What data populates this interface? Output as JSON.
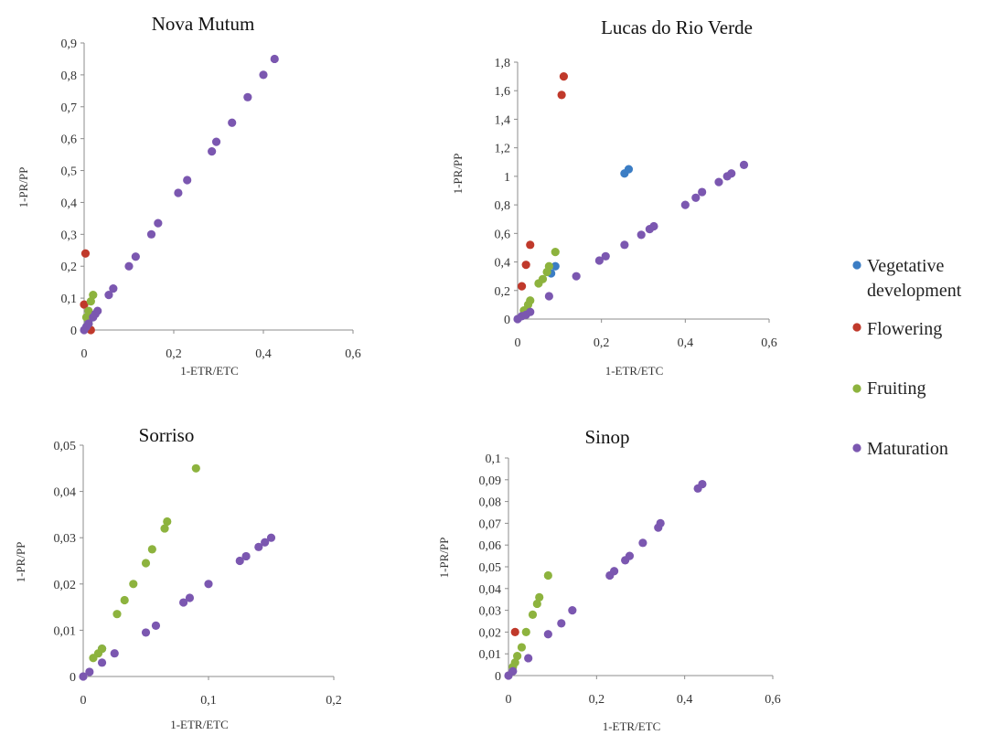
{
  "legend": [
    {
      "lines": [
        "Vegetative",
        "development"
      ],
      "color": "#3b7dc4"
    },
    {
      "lines": [
        "Flowering"
      ],
      "color": "#c0392b"
    },
    {
      "lines": [
        "Fruiting"
      ],
      "color": "#8db33e"
    },
    {
      "lines": [
        "Maturation"
      ],
      "color": "#7b57b0"
    }
  ],
  "chart_data": [
    {
      "type": "scatter",
      "title": "Nova Mutum",
      "xlabel": "1-ETR/ETC",
      "ylabel": "1-PR/PP",
      "xlim": [
        0,
        0.6
      ],
      "ylim": [
        0,
        0.9
      ],
      "xticks": [
        "0",
        "0,2",
        "0,4",
        "0,6"
      ],
      "yticks": [
        "0",
        "0,1",
        "0,2",
        "0,3",
        "0,4",
        "0,5",
        "0,6",
        "0,7",
        "0,8",
        "0,9"
      ],
      "series": [
        {
          "name": "Vegetative development",
          "color": "#3b7dc4",
          "points": [
            [
              0.005,
              0.01
            ],
            [
              0.01,
              0.03
            ]
          ]
        },
        {
          "name": "Flowering",
          "color": "#c0392b",
          "points": [
            [
              0.003,
              0.24
            ],
            [
              0.0,
              0.08
            ],
            [
              0.015,
              0.0
            ]
          ]
        },
        {
          "name": "Fruiting",
          "color": "#8db33e",
          "points": [
            [
              0.005,
              0.04
            ],
            [
              0.01,
              0.06
            ],
            [
              0.015,
              0.09
            ],
            [
              0.02,
              0.11
            ],
            [
              0.01,
              0.02
            ]
          ]
        },
        {
          "name": "Maturation",
          "color": "#7b57b0",
          "points": [
            [
              0.0,
              0.0
            ],
            [
              0.005,
              0.01
            ],
            [
              0.01,
              0.02
            ],
            [
              0.02,
              0.04
            ],
            [
              0.025,
              0.05
            ],
            [
              0.03,
              0.06
            ],
            [
              0.055,
              0.11
            ],
            [
              0.065,
              0.13
            ],
            [
              0.1,
              0.2
            ],
            [
              0.115,
              0.23
            ],
            [
              0.15,
              0.3
            ],
            [
              0.165,
              0.335
            ],
            [
              0.21,
              0.43
            ],
            [
              0.23,
              0.47
            ],
            [
              0.285,
              0.56
            ],
            [
              0.295,
              0.59
            ],
            [
              0.33,
              0.65
            ],
            [
              0.365,
              0.73
            ],
            [
              0.4,
              0.8
            ],
            [
              0.425,
              0.85
            ]
          ]
        }
      ]
    },
    {
      "type": "scatter",
      "title": "Lucas do Rio Verde",
      "xlabel": "1-ETR/ETC",
      "ylabel": "1-PR/PP",
      "xlim": [
        0,
        0.6
      ],
      "ylim": [
        0,
        1.8
      ],
      "xticks": [
        "0",
        "0,2",
        "0,4",
        "0,6"
      ],
      "yticks": [
        "0",
        "0,2",
        "0,4",
        "0,6",
        "0,8",
        "1",
        "1,2",
        "1,4",
        "1,6",
        "1,8"
      ],
      "series": [
        {
          "name": "Vegetative development",
          "color": "#3b7dc4",
          "points": [
            [
              0.255,
              1.02
            ],
            [
              0.265,
              1.05
            ],
            [
              0.08,
              0.32
            ],
            [
              0.09,
              0.37
            ]
          ]
        },
        {
          "name": "Flowering",
          "color": "#c0392b",
          "points": [
            [
              0.11,
              1.7
            ],
            [
              0.105,
              1.57
            ],
            [
              0.03,
              0.52
            ],
            [
              0.02,
              0.38
            ],
            [
              0.01,
              0.23
            ]
          ]
        },
        {
          "name": "Fruiting",
          "color": "#8db33e",
          "points": [
            [
              0.09,
              0.47
            ],
            [
              0.075,
              0.37
            ],
            [
              0.07,
              0.33
            ],
            [
              0.06,
              0.28
            ],
            [
              0.05,
              0.25
            ],
            [
              0.03,
              0.13
            ],
            [
              0.025,
              0.1
            ],
            [
              0.015,
              0.06
            ]
          ]
        },
        {
          "name": "Maturation",
          "color": "#7b57b0",
          "points": [
            [
              0.0,
              0.0
            ],
            [
              0.01,
              0.02
            ],
            [
              0.02,
              0.03
            ],
            [
              0.03,
              0.05
            ],
            [
              0.075,
              0.16
            ],
            [
              0.14,
              0.3
            ],
            [
              0.195,
              0.41
            ],
            [
              0.21,
              0.44
            ],
            [
              0.255,
              0.52
            ],
            [
              0.295,
              0.59
            ],
            [
              0.315,
              0.63
            ],
            [
              0.325,
              0.65
            ],
            [
              0.4,
              0.8
            ],
            [
              0.425,
              0.85
            ],
            [
              0.44,
              0.89
            ],
            [
              0.48,
              0.96
            ],
            [
              0.5,
              1.0
            ],
            [
              0.51,
              1.02
            ],
            [
              0.54,
              1.08
            ]
          ]
        }
      ]
    },
    {
      "type": "scatter",
      "title": "Sorriso",
      "xlabel": "1-ETR/ETC",
      "ylabel": "1-PR/PP",
      "xlim": [
        0,
        0.2
      ],
      "ylim": [
        0,
        0.05
      ],
      "xticks": [
        "0",
        "0,1",
        "0,2"
      ],
      "yticks": [
        "0",
        "0,01",
        "0,02",
        "0,03",
        "0,04",
        "0,05"
      ],
      "series": [
        {
          "name": "Vegetative development",
          "color": "#3b7dc4",
          "points": [
            [
              0.015,
              0.006
            ]
          ]
        },
        {
          "name": "Flowering",
          "color": "#c0392b",
          "points": []
        },
        {
          "name": "Fruiting",
          "color": "#8db33e",
          "points": [
            [
              0.09,
              0.045
            ],
            [
              0.067,
              0.0335
            ],
            [
              0.065,
              0.032
            ],
            [
              0.055,
              0.0275
            ],
            [
              0.05,
              0.0245
            ],
            [
              0.04,
              0.02
            ],
            [
              0.033,
              0.0165
            ],
            [
              0.027,
              0.0135
            ],
            [
              0.015,
              0.006
            ],
            [
              0.012,
              0.005
            ],
            [
              0.008,
              0.004
            ]
          ]
        },
        {
          "name": "Maturation",
          "color": "#7b57b0",
          "points": [
            [
              0.0,
              0.0
            ],
            [
              0.005,
              0.001
            ],
            [
              0.015,
              0.003
            ],
            [
              0.025,
              0.005
            ],
            [
              0.05,
              0.0095
            ],
            [
              0.058,
              0.011
            ],
            [
              0.08,
              0.016
            ],
            [
              0.085,
              0.017
            ],
            [
              0.1,
              0.02
            ],
            [
              0.125,
              0.025
            ],
            [
              0.13,
              0.026
            ],
            [
              0.14,
              0.028
            ],
            [
              0.145,
              0.029
            ],
            [
              0.15,
              0.03
            ]
          ]
        }
      ]
    },
    {
      "type": "scatter",
      "title": "Sinop",
      "xlabel": "1-ETR/ETC",
      "ylabel": "1-PR/PP",
      "xlim": [
        0,
        0.6
      ],
      "ylim": [
        0,
        0.1
      ],
      "xticks": [
        "0",
        "0,2",
        "0,4",
        "0,6"
      ],
      "yticks": [
        "0",
        "0,01",
        "0,02",
        "0,03",
        "0,04",
        "0,05",
        "0,06",
        "0,07",
        "0,08",
        "0,09",
        "0,1"
      ],
      "series": [
        {
          "name": "Vegetative development",
          "color": "#3b7dc4",
          "points": []
        },
        {
          "name": "Flowering",
          "color": "#c0392b",
          "points": [
            [
              0.015,
              0.02
            ]
          ]
        },
        {
          "name": "Fruiting",
          "color": "#8db33e",
          "points": [
            [
              0.09,
              0.046
            ],
            [
              0.07,
              0.036
            ],
            [
              0.065,
              0.033
            ],
            [
              0.055,
              0.028
            ],
            [
              0.04,
              0.02
            ],
            [
              0.03,
              0.013
            ],
            [
              0.02,
              0.009
            ],
            [
              0.015,
              0.006
            ],
            [
              0.01,
              0.004
            ]
          ]
        },
        {
          "name": "Maturation",
          "color": "#7b57b0",
          "points": [
            [
              0.0,
              0.0
            ],
            [
              0.01,
              0.002
            ],
            [
              0.045,
              0.008
            ],
            [
              0.09,
              0.019
            ],
            [
              0.12,
              0.024
            ],
            [
              0.145,
              0.03
            ],
            [
              0.23,
              0.046
            ],
            [
              0.24,
              0.048
            ],
            [
              0.265,
              0.053
            ],
            [
              0.275,
              0.055
            ],
            [
              0.305,
              0.061
            ],
            [
              0.34,
              0.068
            ],
            [
              0.345,
              0.07
            ],
            [
              0.43,
              0.086
            ],
            [
              0.44,
              0.088
            ]
          ]
        }
      ]
    }
  ]
}
